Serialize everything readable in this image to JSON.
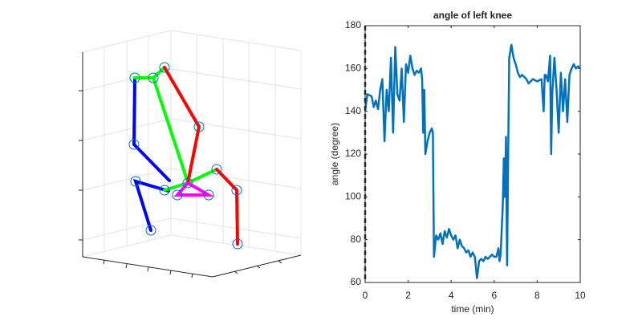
{
  "chart_data": [
    {
      "type": "line",
      "title": "angle of left knee",
      "xlabel": "time (min)",
      "ylabel": "angle (degree)",
      "xlim": [
        0,
        10
      ],
      "xticks": [
        0,
        2,
        4,
        6,
        8,
        10
      ],
      "ylim": [
        60,
        180
      ],
      "yticks": [
        60,
        80,
        100,
        120,
        140,
        160,
        180
      ],
      "grid": false,
      "marker_x": 0,
      "x": [
        0,
        0.1,
        0.3,
        0.4,
        0.5,
        0.6,
        0.7,
        0.8,
        0.9,
        1.0,
        1.1,
        1.2,
        1.3,
        1.4,
        1.5,
        1.6,
        1.7,
        1.8,
        1.9,
        2.0,
        2.1,
        2.2,
        2.3,
        2.4,
        2.5,
        2.6,
        2.65,
        2.7,
        2.75,
        2.8,
        2.9,
        3.0,
        3.1,
        3.15,
        3.2,
        3.3,
        3.4,
        3.5,
        3.6,
        3.7,
        3.8,
        3.9,
        4.0,
        4.1,
        4.2,
        4.3,
        4.4,
        4.5,
        4.6,
        4.7,
        4.8,
        4.9,
        5.0,
        5.1,
        5.2,
        5.3,
        5.4,
        5.5,
        5.6,
        5.7,
        5.8,
        5.9,
        6.0,
        6.1,
        6.2,
        6.25,
        6.3,
        6.4,
        6.45,
        6.5,
        6.55,
        6.6,
        6.65,
        6.7,
        6.8,
        6.9,
        7.0,
        7.1,
        7.2,
        7.3,
        7.5,
        7.6,
        7.8,
        8.0,
        8.2,
        8.3,
        8.35,
        8.4,
        8.5,
        8.6,
        8.65,
        8.7,
        8.8,
        8.9,
        9.0,
        9.1,
        9.2,
        9.3,
        9.4,
        9.5,
        9.6,
        9.7,
        9.8,
        9.9,
        10
      ],
      "series": [
        {
          "name": "left knee",
          "color": "#0072bd",
          "values": [
            140,
            148,
            147,
            142,
            145,
            141,
            150,
            155,
            126,
            150,
            140,
            165,
            130,
            170,
            148,
            145,
            160,
            135,
            162,
            158,
            166,
            160,
            157,
            159,
            158,
            160,
            155,
            130,
            150,
            120,
            126,
            130,
            132,
            130,
            72,
            82,
            80,
            83,
            78,
            84,
            81,
            85,
            82,
            80,
            82,
            76,
            80,
            77,
            76,
            74,
            75,
            72,
            74,
            72,
            62,
            70,
            71,
            70,
            72,
            71,
            72,
            73,
            72,
            72,
            76,
            70,
            73,
            96,
            118,
            100,
            128,
            68,
            120,
            165,
            171,
            165,
            162,
            158,
            156,
            157,
            155,
            153,
            155,
            154,
            155,
            140,
            157,
            157,
            154,
            166,
            120,
            148,
            165,
            150,
            130,
            158,
            140,
            155,
            135,
            157,
            160,
            162,
            160,
            161,
            160
          ]
        }
      ]
    }
  ]
}
